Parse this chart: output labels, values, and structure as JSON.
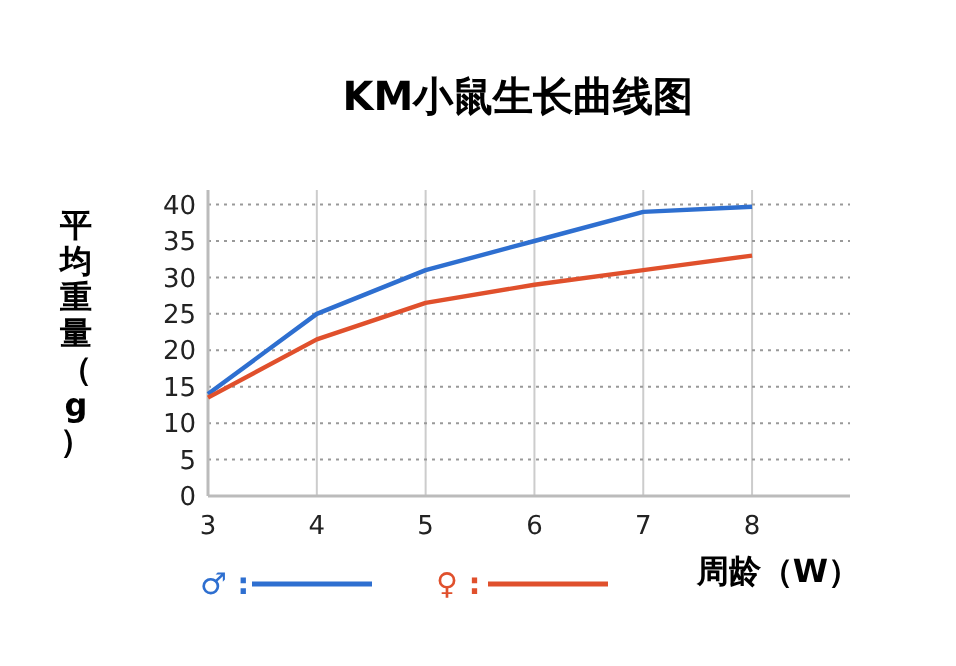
{
  "chart_data": {
    "type": "line",
    "title": "KM小鼠生长曲线图",
    "xlabel": "周龄（W）",
    "ylabel": "平均重量（g）",
    "x": [
      3,
      4,
      5,
      6,
      7,
      8
    ],
    "series": [
      {
        "name": "♂ :",
        "color": "#2e6fd0",
        "values": [
          14,
          25,
          31,
          35,
          39,
          39.7
        ]
      },
      {
        "name": "♀ :",
        "color": "#e0502c",
        "values": [
          13.5,
          21.5,
          26.5,
          29,
          31,
          33
        ]
      }
    ],
    "xlim": [
      3,
      8.9
    ],
    "xticks": [
      3,
      4,
      5,
      6,
      7,
      8
    ],
    "ylim": [
      0,
      42
    ],
    "yticks": [
      0,
      5,
      10,
      15,
      20,
      25,
      30,
      35,
      40
    ],
    "grid": true,
    "legend": "bottom",
    "marker": "none",
    "line_style": "solid"
  }
}
